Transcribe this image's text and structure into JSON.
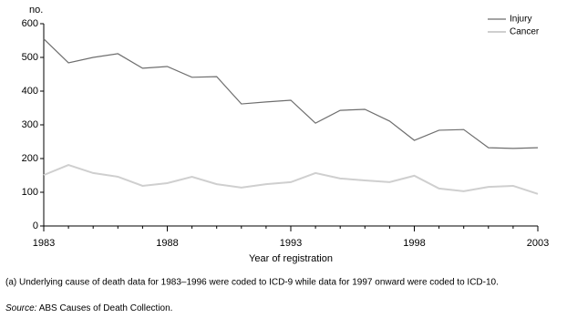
{
  "chart_data": {
    "type": "line",
    "y_axis_label": "no.",
    "x_axis_label": "Year of registration",
    "x": [
      1983,
      1984,
      1985,
      1986,
      1987,
      1988,
      1989,
      1990,
      1991,
      1992,
      1993,
      1994,
      1995,
      1996,
      1997,
      1998,
      1999,
      2000,
      2001,
      2002,
      2003
    ],
    "series": [
      {
        "name": "Injury",
        "color": "#6e6e6e",
        "values": [
          555,
          484,
          500,
          511,
          468,
          473,
          441,
          443,
          362,
          368,
          373,
          305,
          343,
          346,
          311,
          254,
          284,
          286,
          232,
          230,
          232
        ]
      },
      {
        "name": "Cancer",
        "color": "#cfcfcf",
        "values": [
          151,
          181,
          157,
          146,
          119,
          127,
          146,
          124,
          114,
          124,
          130,
          157,
          141,
          135,
          130,
          149,
          111,
          103,
          116,
          119,
          95
        ]
      }
    ],
    "xlim": [
      1983,
      2003
    ],
    "xticks": [
      1983,
      1988,
      1993,
      1998,
      2003
    ],
    "ylim": [
      0,
      600
    ],
    "yticks": [
      0,
      100,
      200,
      300,
      400,
      500,
      600
    ],
    "legend": "top-right",
    "footnote": "(a) Underlying cause of death data for 1983–1996 were coded to ICD-9 while data for 1997 onward were coded to ICD-10.",
    "source_label": "Source:",
    "source_text": "ABS Causes of Death Collection."
  }
}
